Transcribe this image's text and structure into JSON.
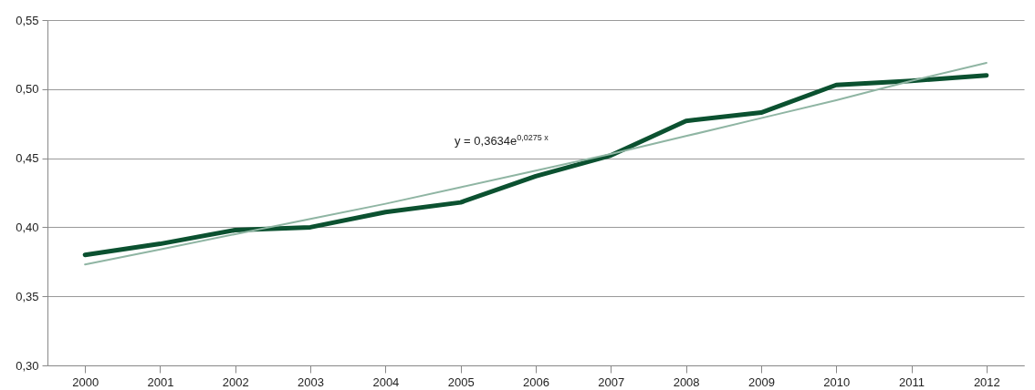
{
  "chart_data": {
    "type": "line",
    "categories": [
      "2000",
      "2001",
      "2002",
      "2003",
      "2004",
      "2005",
      "2006",
      "2007",
      "2008",
      "2009",
      "2010",
      "2011",
      "2012"
    ],
    "series": [
      {
        "color": "#0b5130",
        "values": [
          0.38,
          0.388,
          0.398,
          0.4,
          0.411,
          0.418,
          0.437,
          0.452,
          0.477,
          0.483,
          0.503,
          0.506,
          0.51
        ]
      },
      {
        "type": "line",
        "color": "#8fb5a3",
        "values": [
          0.373,
          0.384,
          0.395,
          0.406,
          0.417,
          0.429,
          0.441,
          0.453,
          0.466,
          0.479,
          0.492,
          0.506,
          0.519
        ]
      }
    ],
    "ylim": [
      0.3,
      0.55
    ],
    "yticks": [
      {
        "value": 0.3,
        "label": "0,30"
      },
      {
        "value": 0.35,
        "label": "0,35"
      },
      {
        "value": 0.4,
        "label": "0,40"
      },
      {
        "value": 0.45,
        "label": "0,45"
      },
      {
        "value": 0.5,
        "label": "0,50"
      },
      {
        "value": 0.55,
        "label": "0,55"
      }
    ],
    "grid": "y",
    "annotations": [
      "y = 0,3634e$^{0,0275 x}$"
    ]
  }
}
